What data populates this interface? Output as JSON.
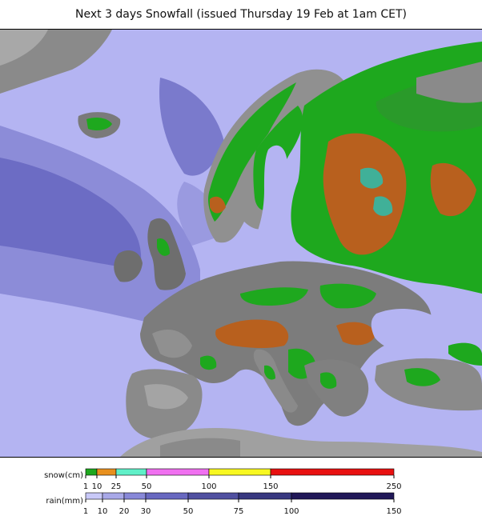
{
  "title": "Next 3 days Snowfall (issued Thursday 19 Feb at 1am CET)",
  "legend": {
    "snow": {
      "label": "snow(cm)",
      "ticks": [
        "1",
        "10",
        "25",
        "50",
        "100",
        "150",
        "250"
      ],
      "colors": [
        "#1ea81e",
        "#e8901e",
        "#60f0c8",
        "#f070f0",
        "#f8f820",
        "#e81010"
      ]
    },
    "rain": {
      "label": "rain(mm)",
      "ticks": [
        "1",
        "10",
        "20",
        "30",
        "50",
        "75",
        "100",
        "150"
      ],
      "colors": [
        "#c8c8f8",
        "#a8a8e8",
        "#8888d8",
        "#6868c0",
        "#5050a0",
        "#383880",
        "#201858"
      ]
    }
  },
  "colors": {
    "sea_light": "#b8b8f4",
    "sea_mid": "#9090dc",
    "sea_deep": "#6a6ac4",
    "land_gray": "#909090",
    "land_dark": "#6e6e6e",
    "snow_green": "#1ea81e",
    "snow_orange": "#b8601e",
    "snow_teal": "#40b098"
  }
}
